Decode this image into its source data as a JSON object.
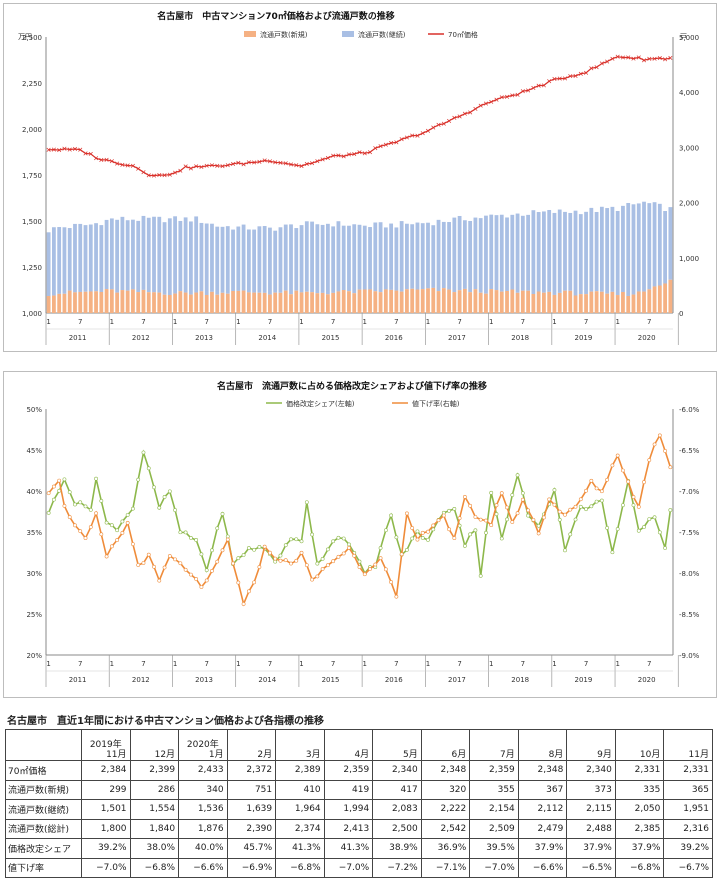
{
  "colors": {
    "new_bar": "#f5b183",
    "cont_bar": "#a9bfe4",
    "price_line": "#d9302a",
    "share_line": "#8db84b",
    "cut_line": "#ef8c3a"
  },
  "chart_data": [
    {
      "type": "bar+line",
      "title": "名古屋市　中古マンション70㎡価格および流通戸数の推移",
      "ylabel_left": "万円",
      "ylabel_right": "戸",
      "ylim_left": [
        1000,
        2500
      ],
      "ylim_right": [
        0,
        5000
      ],
      "yticks_left": [
        "1,000",
        "1,250",
        "1,500",
        "1,750",
        "2,000",
        "2,250",
        "2,500"
      ],
      "yticks_right": [
        "0",
        "1,000",
        "2,000",
        "3,000",
        "4,000",
        "5,000"
      ],
      "years": [
        "2011",
        "2012",
        "2013",
        "2014",
        "2015",
        "2016",
        "2017",
        "2018",
        "2019",
        "2020"
      ],
      "month_ticks": [
        "1",
        "7"
      ],
      "legend": [
        "流通戸数(新規)",
        "流通戸数(継続)",
        "70㎡価格"
      ],
      "price_anchors": [
        [
          0,
          1890
        ],
        [
          6,
          1885
        ],
        [
          10,
          1835
        ],
        [
          16,
          1800
        ],
        [
          19,
          1755
        ],
        [
          22,
          1745
        ],
        [
          26,
          1790
        ],
        [
          32,
          1800
        ],
        [
          36,
          1810
        ],
        [
          42,
          1830
        ],
        [
          48,
          1800
        ],
        [
          54,
          1850
        ],
        [
          60,
          1870
        ],
        [
          66,
          1930
        ],
        [
          72,
          1990
        ],
        [
          78,
          2070
        ],
        [
          84,
          2150
        ],
        [
          90,
          2200
        ],
        [
          96,
          2265
        ],
        [
          102,
          2310
        ],
        [
          108,
          2395
        ],
        [
          113,
          2380
        ],
        [
          118,
          2385
        ],
        [
          122,
          2410
        ],
        [
          128,
          2370
        ],
        [
          131,
          2355
        ],
        [
          135,
          2330
        ]
      ],
      "total_anchors": [
        [
          0,
          1500
        ],
        [
          2,
          1550
        ],
        [
          8,
          1600
        ],
        [
          12,
          1700
        ],
        [
          16,
          1700
        ],
        [
          20,
          1700
        ],
        [
          24,
          1700
        ],
        [
          28,
          1700
        ],
        [
          32,
          1580
        ],
        [
          36,
          1550
        ],
        [
          42,
          1530
        ],
        [
          48,
          1600
        ],
        [
          54,
          1620
        ],
        [
          60,
          1580
        ],
        [
          66,
          1600
        ],
        [
          72,
          1640
        ],
        [
          78,
          1700
        ],
        [
          84,
          1750
        ],
        [
          90,
          1800
        ],
        [
          96,
          1830
        ],
        [
          102,
          1850
        ],
        [
          108,
          1900
        ],
        [
          113,
          2000
        ],
        [
          118,
          1880
        ],
        [
          120,
          2370
        ],
        [
          124,
          2450
        ],
        [
          128,
          2430
        ],
        [
          132,
          2390
        ],
        [
          135,
          2316
        ]
      ],
      "new_anchors": [
        [
          0,
          350
        ],
        [
          12,
          400
        ],
        [
          24,
          360
        ],
        [
          36,
          380
        ],
        [
          48,
          360
        ],
        [
          60,
          390
        ],
        [
          72,
          420
        ],
        [
          84,
          390
        ],
        [
          96,
          370
        ],
        [
          108,
          340
        ],
        [
          112,
          360
        ],
        [
          120,
          700
        ],
        [
          122,
          420
        ],
        [
          135,
          365
        ]
      ]
    },
    {
      "type": "line",
      "title": "名古屋市　流通戸数に占める価格改定シェアおよび値下げ率の推移",
      "ylim_left": [
        0.2,
        0.5
      ],
      "ylim_right": [
        -9.0,
        -6.0
      ],
      "yticks_left": [
        "20%",
        "25%",
        "30%",
        "35%",
        "40%",
        "45%",
        "50%"
      ],
      "yticks_right": [
        "-9.0%",
        "-8.5%",
        "-8.0%",
        "-7.5%",
        "-7.0%",
        "-6.5%",
        "-6.0%"
      ],
      "years": [
        "2011",
        "2012",
        "2013",
        "2014",
        "2015",
        "2016",
        "2017",
        "2018",
        "2019",
        "2020"
      ],
      "month_ticks": [
        "1",
        "7"
      ],
      "legend": [
        "価格改定シェア(左軸)",
        "値下げ率(右軸)"
      ],
      "share_anchors": [
        [
          0,
          37.5
        ],
        [
          2,
          40
        ],
        [
          3,
          41.7
        ],
        [
          5,
          38.5
        ],
        [
          8,
          38
        ],
        [
          9,
          41.5
        ],
        [
          11,
          36
        ],
        [
          13,
          35.5
        ],
        [
          16,
          38
        ],
        [
          18,
          44.8
        ],
        [
          21,
          38
        ],
        [
          23,
          40
        ],
        [
          25,
          35
        ],
        [
          28,
          34
        ],
        [
          30,
          30.5
        ],
        [
          33,
          37.5
        ],
        [
          35,
          31
        ],
        [
          38,
          33
        ],
        [
          41,
          33
        ],
        [
          43,
          31.5
        ],
        [
          46,
          34
        ],
        [
          48,
          34
        ],
        [
          49,
          38.8
        ],
        [
          51,
          31
        ],
        [
          54,
          34
        ],
        [
          56,
          34.5
        ],
        [
          60,
          30
        ],
        [
          62,
          31
        ],
        [
          65,
          37
        ],
        [
          67,
          32
        ],
        [
          70,
          35
        ],
        [
          72,
          34
        ],
        [
          75,
          37.5
        ],
        [
          77,
          38
        ],
        [
          79,
          33.5
        ],
        [
          81,
          35.5
        ],
        [
          82,
          29.8
        ],
        [
          84,
          40
        ],
        [
          86,
          34
        ],
        [
          89,
          42
        ],
        [
          91,
          37
        ],
        [
          93,
          36
        ],
        [
          96,
          40
        ],
        [
          98,
          33
        ],
        [
          101,
          38
        ],
        [
          103,
          38
        ],
        [
          105,
          39
        ],
        [
          107,
          32.5
        ],
        [
          110,
          41
        ],
        [
          112,
          35
        ],
        [
          115,
          37
        ],
        [
          117,
          33
        ],
        [
          119,
          42.5
        ],
        [
          121,
          38
        ],
        [
          122,
          45.5
        ],
        [
          125,
          40
        ],
        [
          127,
          36.5
        ],
        [
          129,
          37.5
        ],
        [
          131,
          37
        ],
        [
          133,
          37
        ],
        [
          135,
          39
        ]
      ],
      "cut_anchors": [
        [
          0,
          -7.0
        ],
        [
          2,
          -6.85
        ],
        [
          3,
          -7.2
        ],
        [
          5,
          -7.4
        ],
        [
          7,
          -7.6
        ],
        [
          9,
          -7.3
        ],
        [
          11,
          -7.8
        ],
        [
          13,
          -7.6
        ],
        [
          15,
          -7.4
        ],
        [
          17,
          -7.9
        ],
        [
          19,
          -7.8
        ],
        [
          21,
          -8.1
        ],
        [
          23,
          -7.8
        ],
        [
          25,
          -7.9
        ],
        [
          27,
          -8.0
        ],
        [
          29,
          -8.2
        ],
        [
          31,
          -8.0
        ],
        [
          34,
          -7.6
        ],
        [
          37,
          -8.4
        ],
        [
          39,
          -8.1
        ],
        [
          41,
          -7.7
        ],
        [
          43,
          -7.8
        ],
        [
          46,
          -7.9
        ],
        [
          48,
          -7.75
        ],
        [
          50,
          -8.1
        ],
        [
          53,
          -7.9
        ],
        [
          57,
          -7.7
        ],
        [
          60,
          -8.0
        ],
        [
          63,
          -7.8
        ],
        [
          66,
          -8.3
        ],
        [
          68,
          -7.3
        ],
        [
          70,
          -7.6
        ],
        [
          73,
          -7.4
        ],
        [
          75,
          -7.3
        ],
        [
          77,
          -7.6
        ],
        [
          79,
          -7.1
        ],
        [
          81,
          -7.3
        ],
        [
          84,
          -7.4
        ],
        [
          86,
          -7.0
        ],
        [
          88,
          -7.4
        ],
        [
          90,
          -7.1
        ],
        [
          93,
          -7.5
        ],
        [
          95,
          -7.1
        ],
        [
          98,
          -7.3
        ],
        [
          100,
          -7.2
        ],
        [
          103,
          -6.9
        ],
        [
          105,
          -7.0
        ],
        [
          108,
          -6.55
        ],
        [
          110,
          -6.9
        ],
        [
          112,
          -7.2
        ],
        [
          114,
          -6.6
        ],
        [
          116,
          -6.3
        ],
        [
          118,
          -6.7
        ],
        [
          120,
          -7.0
        ],
        [
          122,
          -6.6
        ],
        [
          124,
          -6.8
        ],
        [
          126,
          -6.4
        ],
        [
          128,
          -7.0
        ],
        [
          130,
          -6.8
        ],
        [
          131,
          -6.5
        ],
        [
          133,
          -6.8
        ],
        [
          135,
          -6.7
        ]
      ]
    }
  ],
  "table": {
    "title": "名古屋市　直近1年間における中古マンション価格および各指標の推移",
    "headers": [
      {
        "year": "2019年",
        "month": "11月"
      },
      {
        "year": "",
        "month": "12月"
      },
      {
        "year": "2020年",
        "month": "1月"
      },
      {
        "year": "",
        "month": "2月"
      },
      {
        "year": "",
        "month": "3月"
      },
      {
        "year": "",
        "month": "4月"
      },
      {
        "year": "",
        "month": "5月"
      },
      {
        "year": "",
        "month": "6月"
      },
      {
        "year": "",
        "month": "7月"
      },
      {
        "year": "",
        "month": "8月"
      },
      {
        "year": "",
        "month": "9月"
      },
      {
        "year": "",
        "month": "10月"
      },
      {
        "year": "",
        "month": "11月"
      }
    ],
    "rows": [
      {
        "label": "70㎡価格",
        "values": [
          "2,384",
          "2,399",
          "2,433",
          "2,372",
          "2,389",
          "2,359",
          "2,340",
          "2,348",
          "2,359",
          "2,348",
          "2,340",
          "2,331",
          "2,331"
        ]
      },
      {
        "label": "流通戸数(新規)",
        "values": [
          "299",
          "286",
          "340",
          "751",
          "410",
          "419",
          "417",
          "320",
          "355",
          "367",
          "373",
          "335",
          "365"
        ]
      },
      {
        "label": "流通戸数(継続)",
        "values": [
          "1,501",
          "1,554",
          "1,536",
          "1,639",
          "1,964",
          "1,994",
          "2,083",
          "2,222",
          "2,154",
          "2,112",
          "2,115",
          "2,050",
          "1,951"
        ]
      },
      {
        "label": "流通戸数(総計)",
        "values": [
          "1,800",
          "1,840",
          "1,876",
          "2,390",
          "2,374",
          "2,413",
          "2,500",
          "2,542",
          "2,509",
          "2,479",
          "2,488",
          "2,385",
          "2,316"
        ]
      },
      {
        "label": "価格改定シェア",
        "values": [
          "39.2%",
          "38.0%",
          "40.0%",
          "45.7%",
          "41.3%",
          "41.3%",
          "38.9%",
          "36.9%",
          "39.5%",
          "37.9%",
          "37.9%",
          "37.9%",
          "39.2%"
        ]
      },
      {
        "label": "値下げ率",
        "values": [
          "−7.0%",
          "−6.8%",
          "−6.6%",
          "−6.9%",
          "−6.8%",
          "−7.0%",
          "−7.2%",
          "−7.1%",
          "−7.0%",
          "−6.6%",
          "−6.5%",
          "−6.8%",
          "−6.7%"
        ]
      }
    ]
  }
}
